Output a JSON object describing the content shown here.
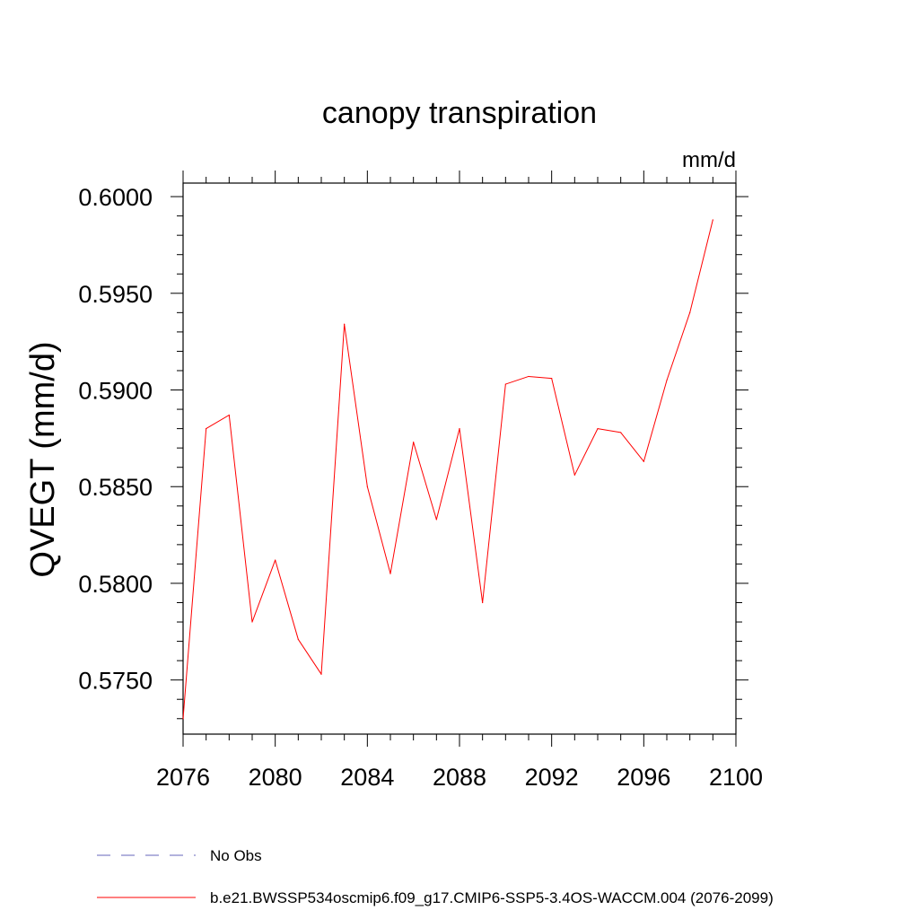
{
  "chart_data": {
    "type": "line",
    "title": "canopy transpiration",
    "units": "mm/d",
    "xlabel": "",
    "ylabel": "QVEGT  (mm/d)",
    "xlim": [
      2076,
      2100
    ],
    "ylim": [
      0.5722,
      0.6007
    ],
    "xticks": [
      2076,
      2080,
      2084,
      2088,
      2092,
      2096,
      2100
    ],
    "xtick_labels": [
      "2076",
      "2080",
      "2084",
      "2088",
      "2092",
      "2096",
      "2100"
    ],
    "yticks": [
      0.575,
      0.58,
      0.585,
      0.59,
      0.595,
      0.6
    ],
    "ytick_labels": [
      "0.5750",
      "0.5800",
      "0.5850",
      "0.5900",
      "0.5950",
      "0.6000"
    ],
    "x": [
      2076,
      2077,
      2078,
      2079,
      2080,
      2081,
      2082,
      2083,
      2084,
      2085,
      2086,
      2087,
      2088,
      2089,
      2090,
      2091,
      2092,
      2093,
      2094,
      2095,
      2096,
      2097,
      2098,
      2099
    ],
    "series": [
      {
        "name": "b.e21.BWSSP534oscmip6.f09_g17.CMIP6-SSP5-3.4OS-WACCM.004 (2076-2099)",
        "color": "#ff0000",
        "values": [
          0.573,
          0.588,
          0.5887,
          0.578,
          0.5812,
          0.5771,
          0.5753,
          0.5934,
          0.585,
          0.5805,
          0.5873,
          0.5833,
          0.588,
          0.579,
          0.5903,
          0.5907,
          0.5906,
          0.5856,
          0.588,
          0.5878,
          0.5863,
          0.5905,
          0.594,
          0.5988
        ]
      }
    ],
    "legend": {
      "placement": "bottom",
      "entries": [
        {
          "label": "No Obs",
          "color": "#6666bb",
          "style": "dashed"
        },
        {
          "label": "b.e21.BWSSP534oscmip6.f09_g17.CMIP6-SSP5-3.4OS-WACCM.004 (2076-2099)",
          "color": "#ff0000",
          "style": "solid"
        }
      ]
    },
    "grid": false
  }
}
